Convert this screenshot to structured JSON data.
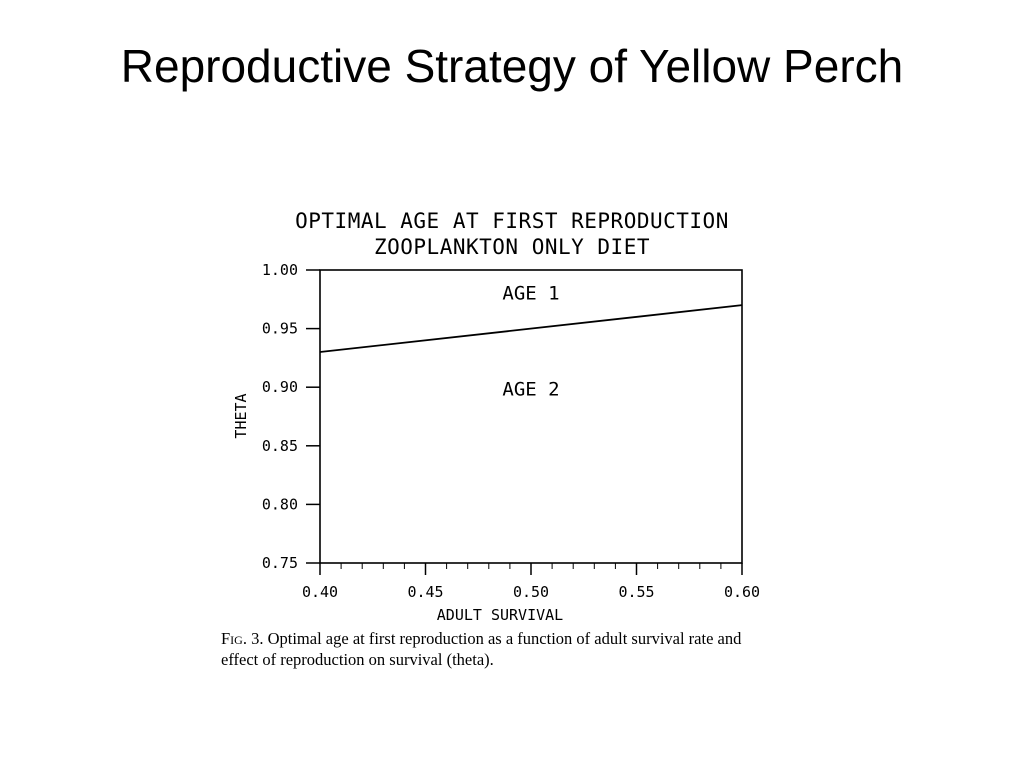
{
  "slide": {
    "title": "Reproductive Strategy of Yellow Perch"
  },
  "chart_data": {
    "type": "line",
    "title": "OPTIMAL AGE AT FIRST REPRODUCTION",
    "subtitle": "ZOOPLANKTON ONLY DIET",
    "xlabel": "ADULT SURVIVAL",
    "ylabel": "THETA",
    "xlim": [
      0.4,
      0.6
    ],
    "ylim": [
      0.75,
      1.0
    ],
    "x_ticks": [
      "0.40",
      "0.45",
      "0.50",
      "0.55",
      "0.60"
    ],
    "y_ticks": [
      "1.00",
      "0.95",
      "0.90",
      "0.85",
      "0.80",
      "0.75"
    ],
    "series": [
      {
        "x": [
          0.4,
          0.6
        ],
        "y": [
          0.93,
          0.97
        ]
      }
    ],
    "annotations": [
      {
        "text": "AGE 1",
        "x": 0.5,
        "y": 0.975
      },
      {
        "text": "AGE 2",
        "x": 0.5,
        "y": 0.893
      }
    ],
    "grid": false,
    "line_color": "#000000"
  },
  "caption": {
    "tag": "Fig. 3.",
    "text": "Optimal age at first reproduction as a function of adult survival rate and effect of reproduction on survival (theta)."
  }
}
